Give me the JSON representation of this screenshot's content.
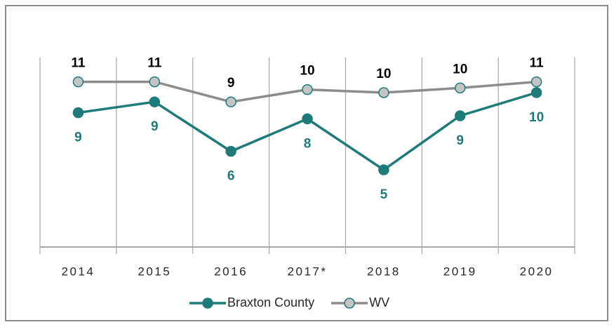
{
  "chart_data": {
    "type": "line",
    "categories": [
      "2014",
      "2015",
      "2016",
      "2017*",
      "2018",
      "2019",
      "2020"
    ],
    "series": [
      {
        "name": "Braxton County",
        "color": "#1f7a7a",
        "marker_fill": "#1f7a7a",
        "values": [
          8.7,
          9.4,
          6.2,
          8.3,
          5.0,
          8.5,
          10.0
        ],
        "value_labels": [
          "9",
          "9",
          "6",
          "8",
          "5",
          "9",
          "10"
        ],
        "label_position": "below"
      },
      {
        "name": "WV",
        "color": "#8c8c8c",
        "marker_fill": "#c4c4c4",
        "values": [
          10.7,
          10.7,
          9.4,
          10.2,
          10.0,
          10.3,
          10.7
        ],
        "value_labels": [
          "11",
          "11",
          "9",
          "10",
          "10",
          "10",
          "11"
        ],
        "label_position": "above"
      }
    ],
    "ylim": [
      0,
      12
    ],
    "legend": "bottom"
  }
}
